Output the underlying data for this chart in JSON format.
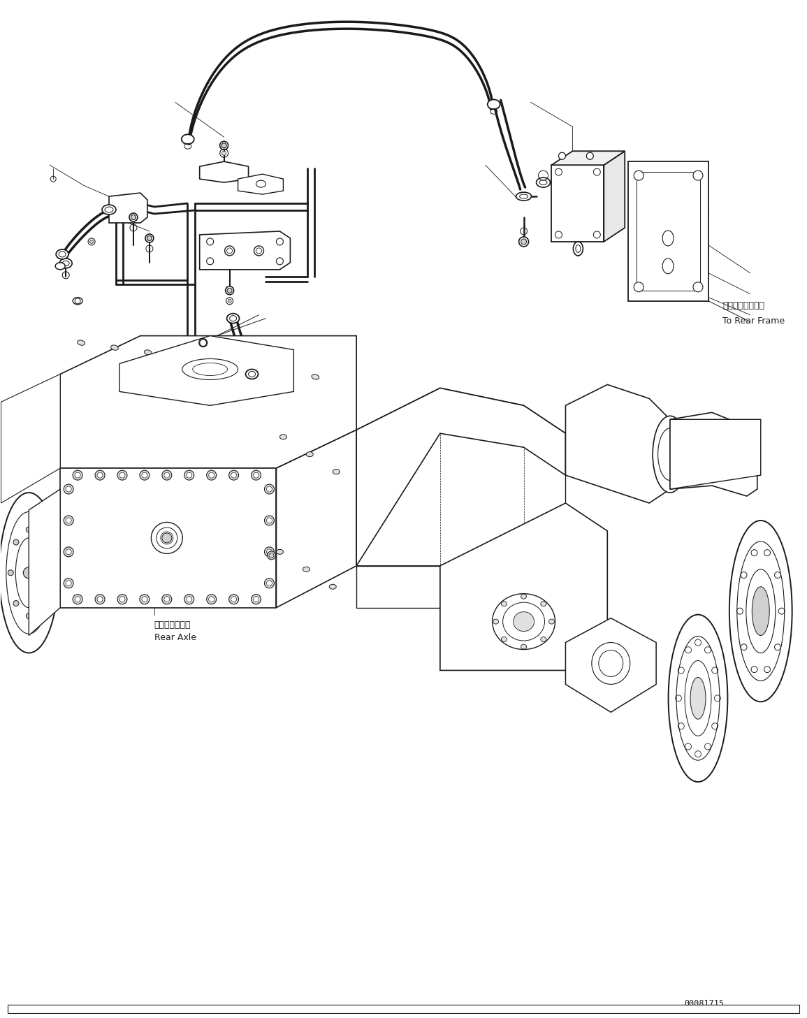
{
  "part_number": "00081715",
  "label_rear_axle_jp": "リヤーアクスル",
  "label_rear_axle_en": "Rear Axle",
  "label_rear_frame_jp": "リヤーフレームへ",
  "label_rear_frame_en": "To Rear Frame",
  "bg_color": "#ffffff",
  "line_color": "#1a1a1a",
  "text_color": "#1a1a1a",
  "figsize": [
    11.55,
    14.57
  ],
  "dpi": 100
}
